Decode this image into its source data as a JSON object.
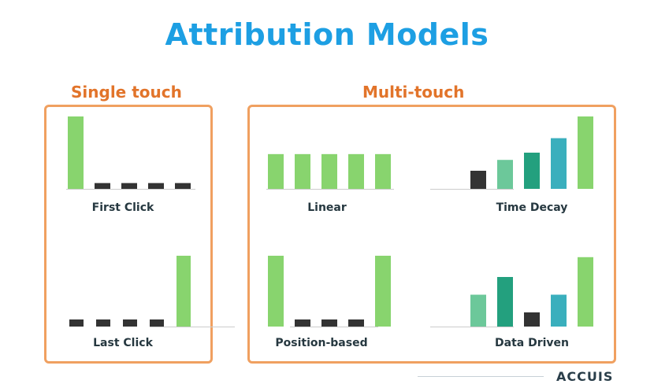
{
  "title": "Attribution Models",
  "groups": {
    "single_label": "Single touch",
    "multi_label": "Multi-touch"
  },
  "colors": {
    "title": "#1d9fe3",
    "group_label": "#e2742a",
    "box_border": "#f0a060",
    "label_text": "#263840",
    "green": "#88d46e",
    "dark": "#333333",
    "teal_light": "#6cc89a",
    "teal": "#23a07e",
    "cyan": "#3aafbd",
    "baseline": "#cccccc"
  },
  "models": {
    "first_click": "First Click",
    "last_click": "Last Click",
    "linear": "Linear",
    "position_based": "Position-based",
    "time_decay": "Time Decay",
    "data_driven": "Data Driven"
  },
  "footer": {
    "text": "ACCUIS"
  },
  "chart_data": [
    {
      "type": "bar",
      "title": "First Click",
      "values": [
        1.0,
        0.08,
        0.08,
        0.08,
        0.08
      ],
      "colors": [
        "green",
        "dark",
        "dark",
        "dark",
        "dark"
      ]
    },
    {
      "type": "bar",
      "title": "Last Click",
      "values": [
        0.1,
        0.1,
        0.1,
        0.1,
        1.0
      ],
      "colors": [
        "dark",
        "dark",
        "dark",
        "dark",
        "green"
      ]
    },
    {
      "type": "bar",
      "title": "Linear",
      "values": [
        0.48,
        0.48,
        0.48,
        0.48,
        0.48
      ],
      "colors": [
        "green",
        "green",
        "green",
        "green",
        "green"
      ]
    },
    {
      "type": "bar",
      "title": "Position-based",
      "values": [
        1.0,
        0.1,
        0.1,
        0.1,
        1.0
      ],
      "colors": [
        "green",
        "dark",
        "dark",
        "dark",
        "green"
      ]
    },
    {
      "type": "bar",
      "title": "Time Decay",
      "values": [
        0.25,
        0.4,
        0.5,
        0.7,
        1.0
      ],
      "colors": [
        "dark",
        "teal_light",
        "teal",
        "cyan",
        "green"
      ]
    },
    {
      "type": "bar",
      "title": "Data Driven",
      "values": [
        0.45,
        0.7,
        0.2,
        0.45,
        0.98
      ],
      "colors": [
        "teal_light",
        "teal",
        "dark",
        "cyan",
        "green"
      ]
    }
  ]
}
